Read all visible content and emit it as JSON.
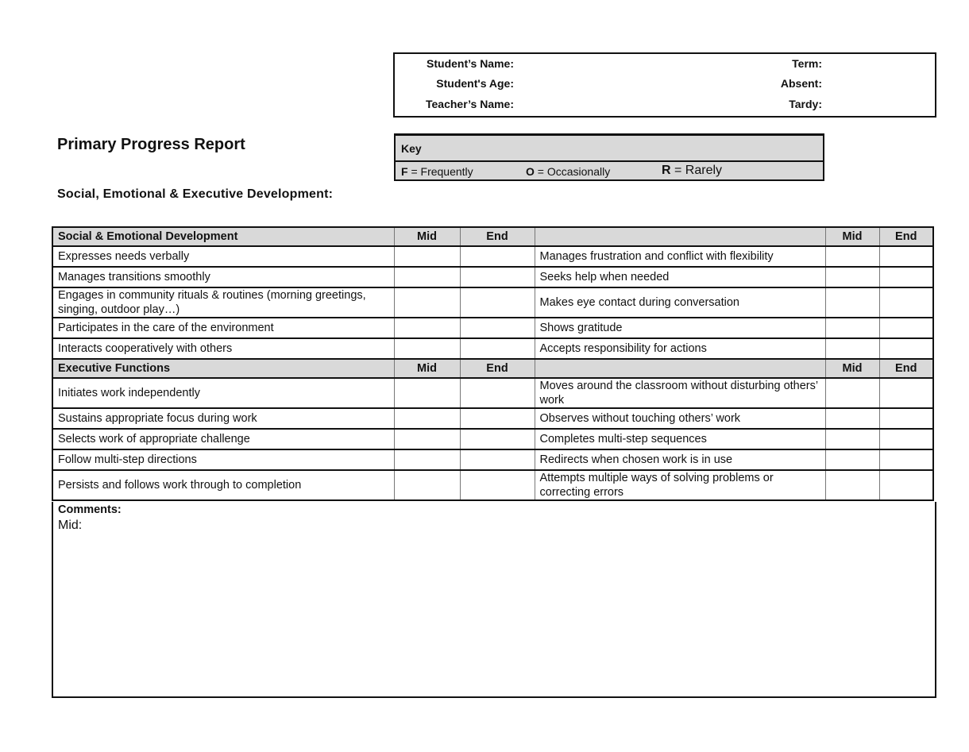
{
  "info": {
    "student_name": "Student’s Name:",
    "student_age": "Student's Age:",
    "teacher_name": "Teacher’s Name:",
    "term": "Term:",
    "absent": "Absent:",
    "tardy": "Tardy:"
  },
  "title": "Primary Progress Report",
  "subtitle": "Social, Emotional & Executive Development:",
  "key": {
    "heading": "Key",
    "items": [
      {
        "letter": "F",
        "text": " = Frequently"
      },
      {
        "letter": "O",
        "text": " = Occasionally"
      },
      {
        "letter": "R",
        "text": " = Rarely"
      }
    ]
  },
  "sections": [
    {
      "heading": "Social & Emotional Development",
      "mid": "Mid",
      "end": "End",
      "rows": [
        [
          "Expresses needs verbally",
          "Manages frustration and conflict with flexibility"
        ],
        [
          "Manages transitions smoothly",
          "Seeks help when needed"
        ],
        [
          "Engages in community rituals & routines (morning greetings, singing, outdoor play…)",
          "Makes eye contact during conversation"
        ],
        [
          "Participates in the care of the environment",
          "Shows gratitude"
        ],
        [
          "Interacts cooperatively with others",
          "Accepts responsibility for actions"
        ]
      ]
    },
    {
      "heading": "Executive Functions",
      "mid": "Mid",
      "end": "End",
      "rows": [
        [
          "Initiates work independently",
          "Moves around the classroom without disturbing others’ work"
        ],
        [
          "Sustains appropriate focus during work",
          "Observes without touching others’ work"
        ],
        [
          "Selects work of appropriate challenge",
          "Completes multi-step sequences"
        ],
        [
          "Follow multi-step directions",
          "Redirects when chosen work is in use"
        ],
        [
          "Persists and follows work through to completion",
          "Attempts multiple ways of solving problems or correcting errors"
        ]
      ]
    }
  ],
  "comments": {
    "heading": "Comments:",
    "mid": "Mid:"
  }
}
